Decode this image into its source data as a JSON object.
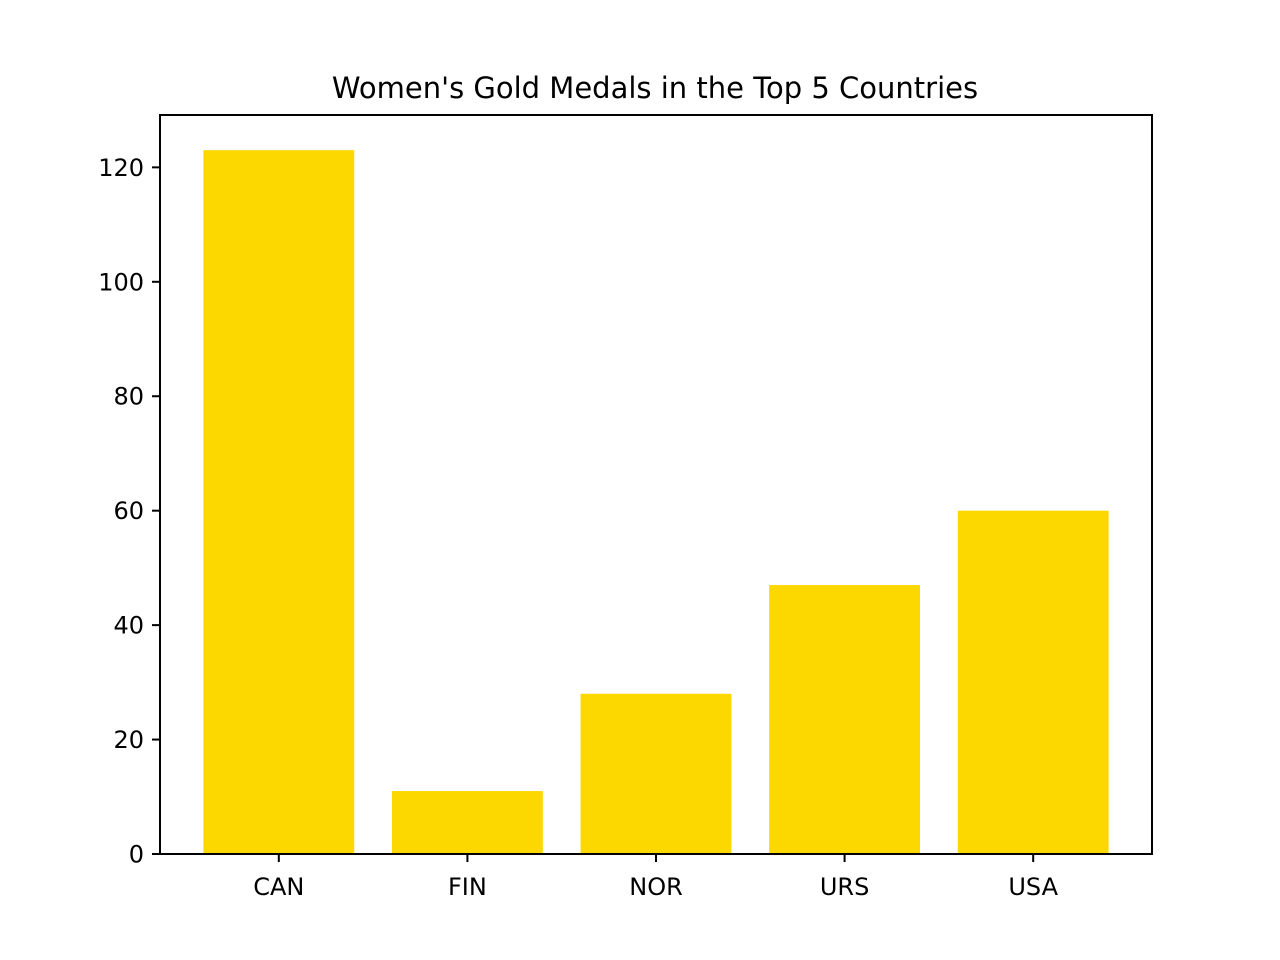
{
  "chart_data": {
    "type": "bar",
    "title": "Women's Gold Medals in the Top 5 Countries",
    "xlabel": "",
    "ylabel": "",
    "categories": [
      "CAN",
      "FIN",
      "NOR",
      "URS",
      "USA"
    ],
    "values": [
      123,
      11,
      28,
      47,
      60
    ],
    "ylim": [
      0,
      129.15
    ],
    "yticks": [
      0,
      20,
      40,
      60,
      80,
      100,
      120
    ],
    "ytick_labels": [
      "0",
      "20",
      "40",
      "60",
      "80",
      "100",
      "120"
    ],
    "bar_color": "#fcd700",
    "grid": false,
    "legend": "none"
  }
}
